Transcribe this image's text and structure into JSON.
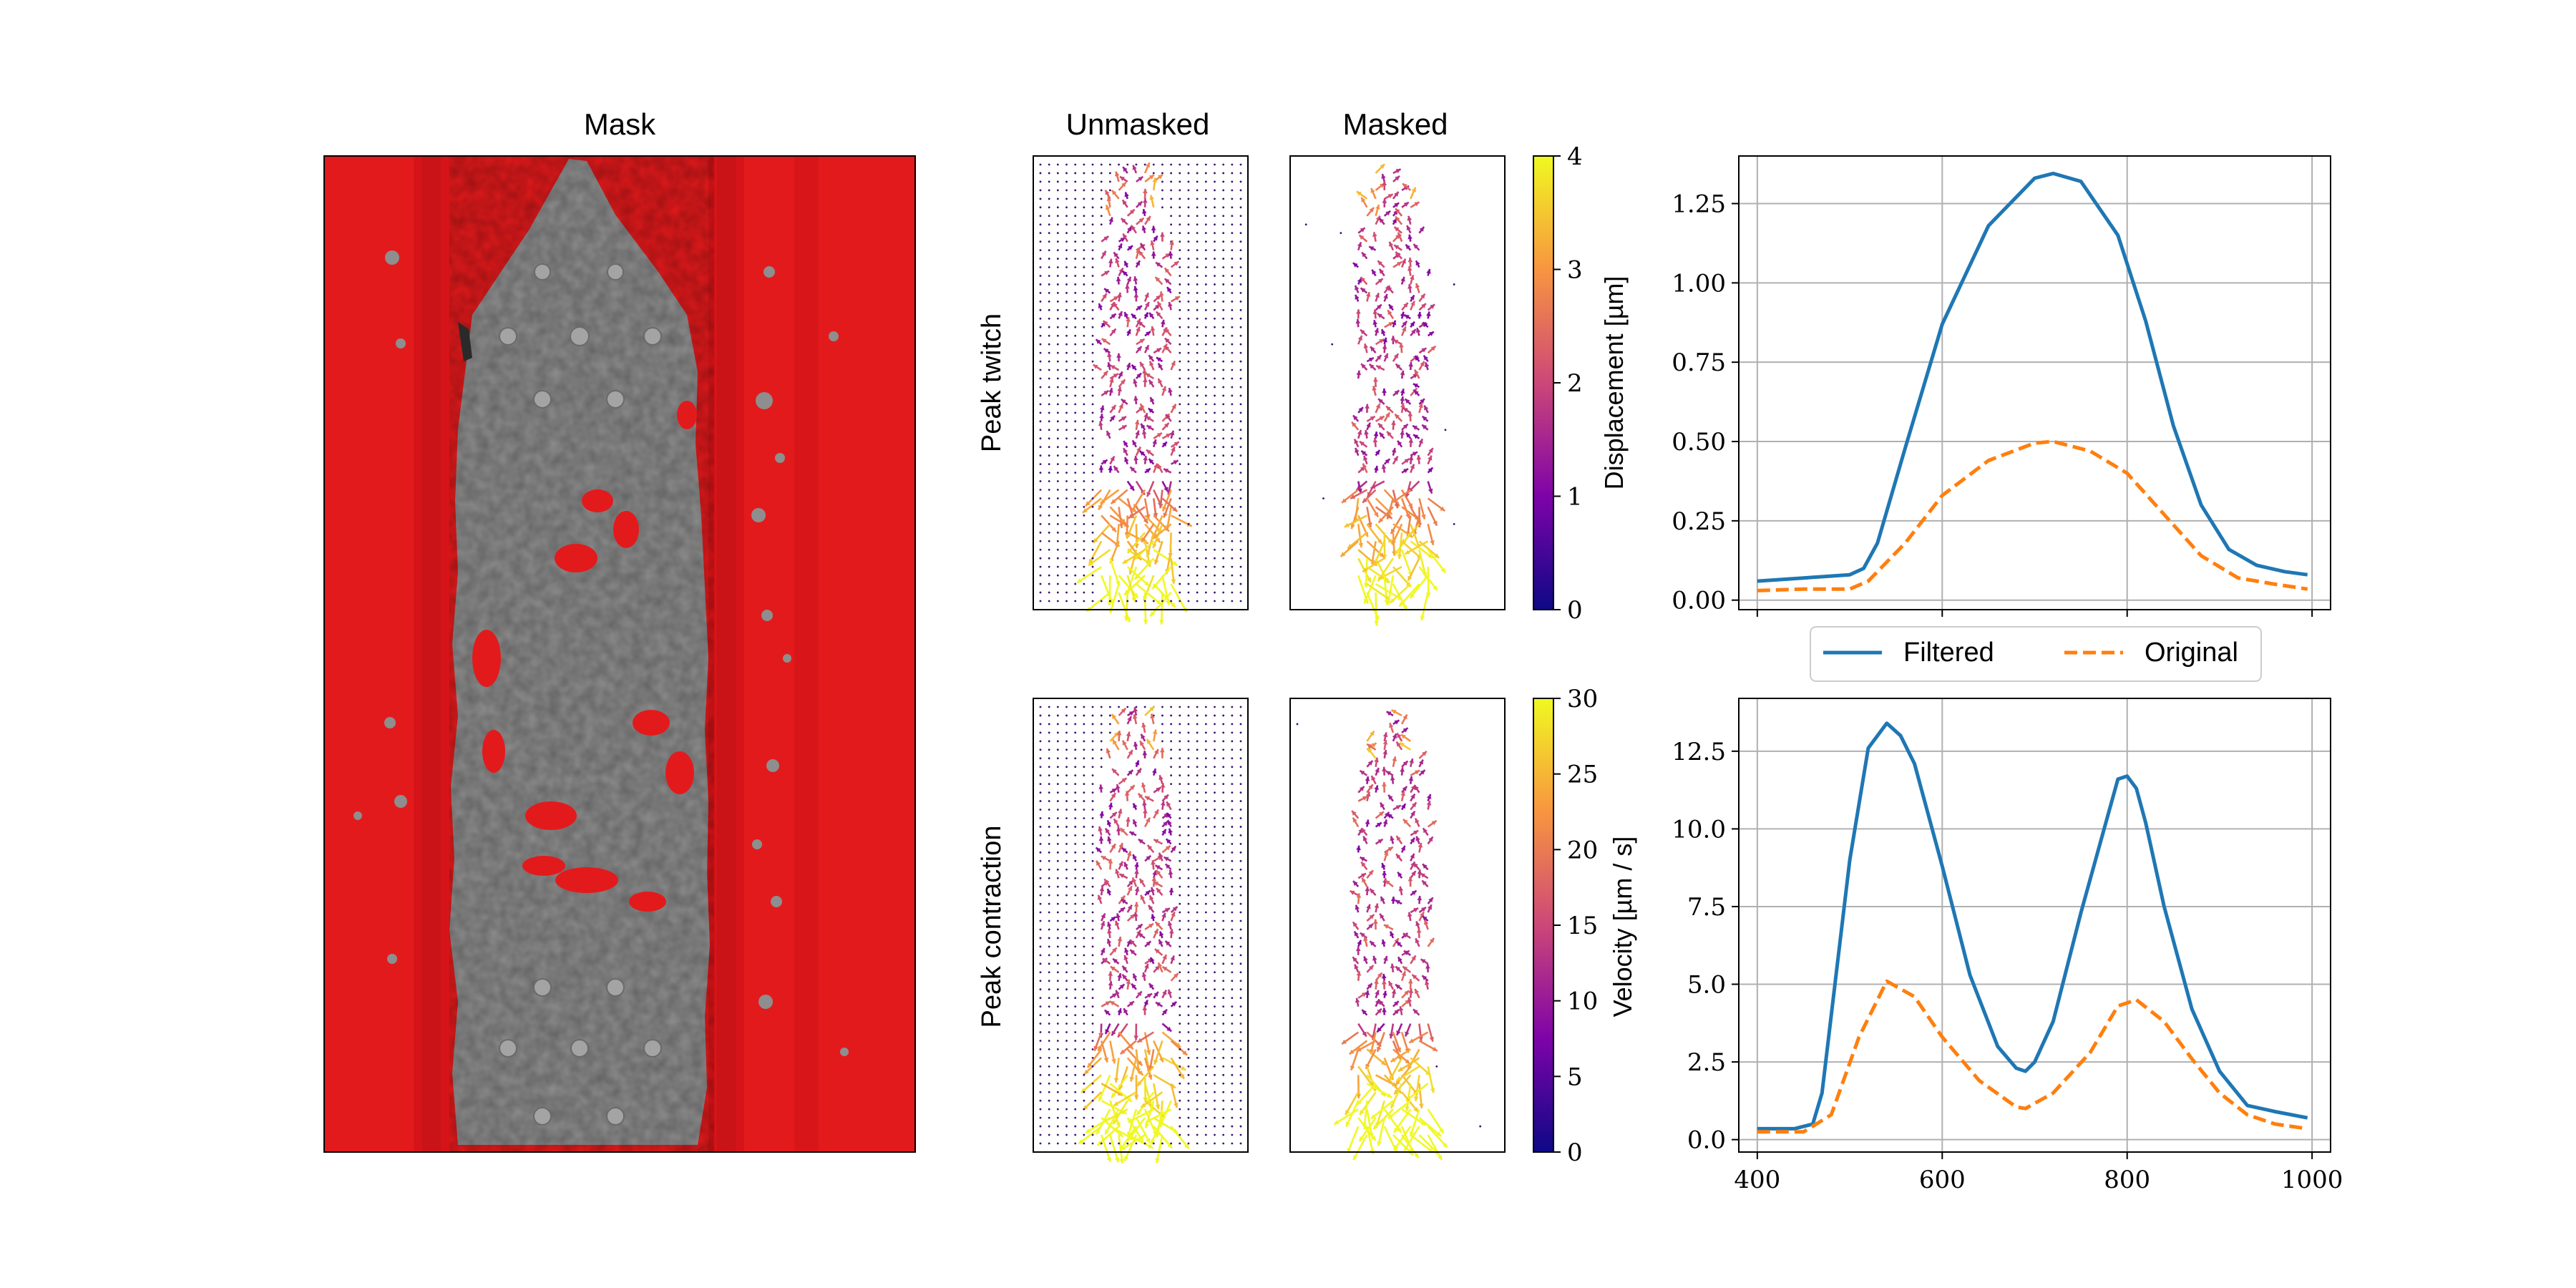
{
  "figure": {
    "mask_panel": {
      "title": "Mask",
      "colors": {
        "background": "#e31a1c",
        "tissue": "#8c8c8c"
      }
    },
    "quiver_panels": {
      "column_titles": [
        "Unmasked",
        "Masked"
      ],
      "row_labels": [
        "Peak twitch",
        "Peak contraction"
      ],
      "colormap": [
        "#0d0887",
        "#7e03a8",
        "#cc4778",
        "#f89540",
        "#f0f921"
      ]
    },
    "colorbars": [
      {
        "label": "Displacement [µm]",
        "range": [
          0,
          4
        ],
        "ticks": [
          "0",
          "1",
          "2",
          "3",
          "4"
        ]
      },
      {
        "label": "Velocity [µm / s]",
        "range": [
          0,
          30
        ],
        "ticks": [
          "0",
          "5",
          "10",
          "15",
          "20",
          "25",
          "30"
        ]
      }
    ],
    "legend": {
      "entries": [
        "Filtered",
        "Original"
      ],
      "placement": "between right panels"
    },
    "colors": {
      "filtered": "#1f77b4",
      "original": "#ff7f0e",
      "grid": "#b0b0b0"
    }
  },
  "chart_data": [
    {
      "type": "line",
      "title": "",
      "xlabel": "",
      "ylabel": "",
      "xlim": [
        380,
        1020
      ],
      "ylim": [
        -0.03,
        1.4
      ],
      "xticks": [
        400,
        600,
        800,
        1000
      ],
      "yticks": [
        "0.00",
        "0.25",
        "0.50",
        "0.75",
        "1.00",
        "1.25"
      ],
      "grid": true,
      "series": [
        {
          "name": "Filtered",
          "style": "solid",
          "x": [
            400,
            450,
            500,
            515,
            530,
            560,
            600,
            650,
            700,
            720,
            750,
            790,
            820,
            850,
            880,
            910,
            940,
            970,
            995
          ],
          "y": [
            0.06,
            0.07,
            0.08,
            0.1,
            0.18,
            0.48,
            0.87,
            1.18,
            1.33,
            1.345,
            1.32,
            1.15,
            0.88,
            0.55,
            0.3,
            0.16,
            0.11,
            0.09,
            0.08
          ]
        },
        {
          "name": "Original",
          "style": "dashed",
          "x": [
            400,
            450,
            500,
            520,
            560,
            600,
            650,
            700,
            720,
            760,
            800,
            840,
            880,
            920,
            960,
            995
          ],
          "y": [
            0.03,
            0.035,
            0.035,
            0.06,
            0.18,
            0.33,
            0.44,
            0.495,
            0.5,
            0.47,
            0.4,
            0.27,
            0.14,
            0.07,
            0.05,
            0.035
          ]
        }
      ]
    },
    {
      "type": "line",
      "title": "",
      "xlabel": "",
      "ylabel": "",
      "xlim": [
        380,
        1020
      ],
      "ylim": [
        -0.4,
        14.2
      ],
      "xticks": [
        400,
        600,
        800,
        1000
      ],
      "xtick_labels": [
        "400",
        "600",
        "800",
        "1000"
      ],
      "yticks": [
        "0.0",
        "2.5",
        "5.0",
        "7.5",
        "10.0",
        "12.5"
      ],
      "grid": true,
      "series": [
        {
          "name": "Filtered",
          "style": "solid",
          "x": [
            400,
            440,
            460,
            470,
            480,
            500,
            520,
            540,
            555,
            570,
            600,
            630,
            660,
            680,
            690,
            700,
            720,
            750,
            790,
            800,
            810,
            820,
            840,
            870,
            900,
            930,
            960,
            995
          ],
          "y": [
            0.35,
            0.35,
            0.5,
            1.5,
            4.0,
            9.0,
            12.6,
            13.4,
            13.0,
            12.1,
            8.8,
            5.3,
            3.0,
            2.3,
            2.2,
            2.5,
            3.8,
            7.3,
            11.6,
            11.7,
            11.3,
            10.2,
            7.5,
            4.2,
            2.2,
            1.1,
            0.9,
            0.7
          ]
        },
        {
          "name": "Original",
          "style": "dashed",
          "x": [
            400,
            450,
            480,
            510,
            540,
            570,
            600,
            640,
            680,
            690,
            720,
            760,
            790,
            810,
            840,
            870,
            900,
            930,
            960,
            995
          ],
          "y": [
            0.25,
            0.25,
            0.8,
            3.3,
            5.1,
            4.6,
            3.3,
            1.9,
            1.05,
            1.0,
            1.5,
            2.8,
            4.3,
            4.5,
            3.8,
            2.6,
            1.5,
            0.8,
            0.5,
            0.35
          ]
        }
      ]
    }
  ]
}
